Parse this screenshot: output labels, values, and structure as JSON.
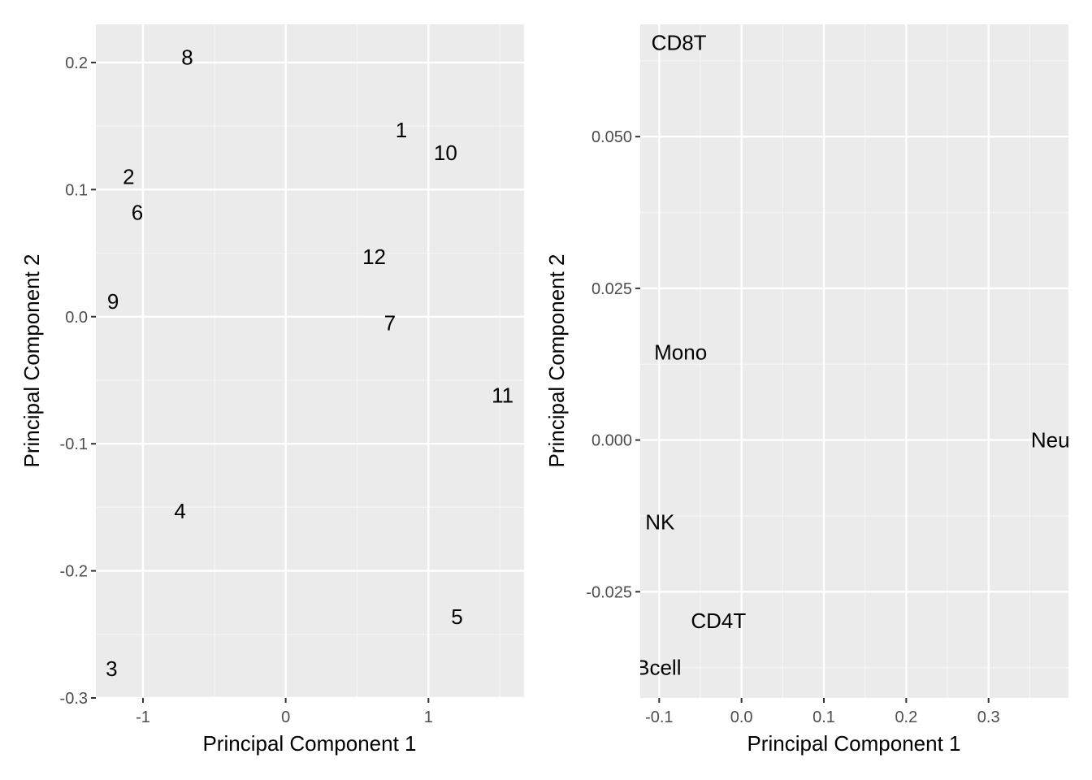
{
  "chart_data": [
    {
      "type": "scatter",
      "title": "",
      "xlabel": "Principal Component 1",
      "ylabel": "Principal Component 2",
      "xlim": [
        -1.33,
        1.67
      ],
      "ylim": [
        -0.3,
        0.23
      ],
      "xticks": [
        -1,
        0,
        1
      ],
      "xtick_labels": [
        "-1",
        "0",
        "1"
      ],
      "yticks": [
        -0.3,
        -0.2,
        -0.1,
        0.0,
        0.1,
        0.2
      ],
      "ytick_labels": [
        "-0.3",
        "-0.2",
        "-0.1",
        "0.0",
        "0.1",
        "0.2"
      ],
      "grid": true,
      "points": [
        {
          "label": "8",
          "x": -0.69,
          "y": 0.204
        },
        {
          "label": "1",
          "x": 0.81,
          "y": 0.147
        },
        {
          "label": "10",
          "x": 1.12,
          "y": 0.129
        },
        {
          "label": "2",
          "x": -1.1,
          "y": 0.11
        },
        {
          "label": "6",
          "x": -1.04,
          "y": 0.082
        },
        {
          "label": "12",
          "x": 0.62,
          "y": 0.047
        },
        {
          "label": "9",
          "x": -1.21,
          "y": 0.012
        },
        {
          "label": "7",
          "x": 0.73,
          "y": -0.005
        },
        {
          "label": "11",
          "x": 1.52,
          "y": -0.062
        },
        {
          "label": "4",
          "x": -0.74,
          "y": -0.153
        },
        {
          "label": "5",
          "x": 1.2,
          "y": -0.236
        },
        {
          "label": "3",
          "x": -1.22,
          "y": -0.277
        }
      ]
    },
    {
      "type": "scatter",
      "title": "",
      "xlabel": "Principal Component 1",
      "ylabel": "Principal Component 2",
      "xlim": [
        -0.123,
        0.397
      ],
      "ylim": [
        -0.0425,
        0.0685
      ],
      "xticks": [
        -0.1,
        0.0,
        0.1,
        0.2,
        0.3
      ],
      "xtick_labels": [
        "-0.1",
        "0.0",
        "0.1",
        "0.2",
        "0.3"
      ],
      "yticks": [
        -0.025,
        0.0,
        0.025,
        0.05
      ],
      "ytick_labels": [
        "-0.025",
        "0.000",
        "0.025",
        "0.050"
      ],
      "grid": true,
      "points": [
        {
          "label": "CD8T",
          "x": -0.076,
          "y": 0.0655
        },
        {
          "label": "Mono",
          "x": -0.074,
          "y": 0.0145
        },
        {
          "label": "Neu",
          "x": 0.375,
          "y": 0.0
        },
        {
          "label": "NK",
          "x": -0.099,
          "y": -0.0135
        },
        {
          "label": "CD4T",
          "x": -0.028,
          "y": -0.0298
        },
        {
          "label": "Bcell",
          "x": -0.101,
          "y": -0.0375
        }
      ]
    }
  ]
}
